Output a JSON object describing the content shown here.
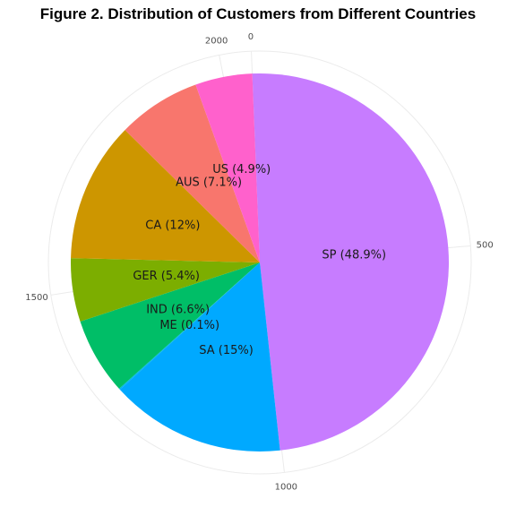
{
  "chart_data": {
    "type": "pie",
    "title": "Figure 2. Distribution of Customers from Different Countries",
    "total": 2050,
    "clockwise": true,
    "slices": [
      {
        "name": "SP",
        "label": "SP (48.9%)",
        "value": 1003,
        "color": "#C77CFF"
      },
      {
        "name": "SA",
        "label": "SA (15%)",
        "value": 307,
        "color": "#00A9FF"
      },
      {
        "name": "ME",
        "label": "ME (0.1%)",
        "value": 2,
        "color": "#00B8E7"
      },
      {
        "name": "IND",
        "label": "IND (6.6%)",
        "value": 135,
        "color": "#00BE67"
      },
      {
        "name": "GER",
        "label": "GER (5.4%)",
        "value": 111,
        "color": "#7CAE00"
      },
      {
        "name": "CA",
        "label": "CA (12%)",
        "value": 246,
        "color": "#CD9600"
      },
      {
        "name": "AUS",
        "label": "AUS (7.1%)",
        "value": 146,
        "color": "#F8766D"
      },
      {
        "name": "US",
        "label": "US (4.9%)",
        "value": 100,
        "color": "#FF61CC"
      }
    ],
    "ticks": [
      {
        "value": 0,
        "label": "0"
      },
      {
        "value": 500,
        "label": "500"
      },
      {
        "value": 1000,
        "label": "1000"
      },
      {
        "value": 1500,
        "label": "1500"
      },
      {
        "value": 2000,
        "label": "2000"
      }
    ],
    "grid": true
  }
}
